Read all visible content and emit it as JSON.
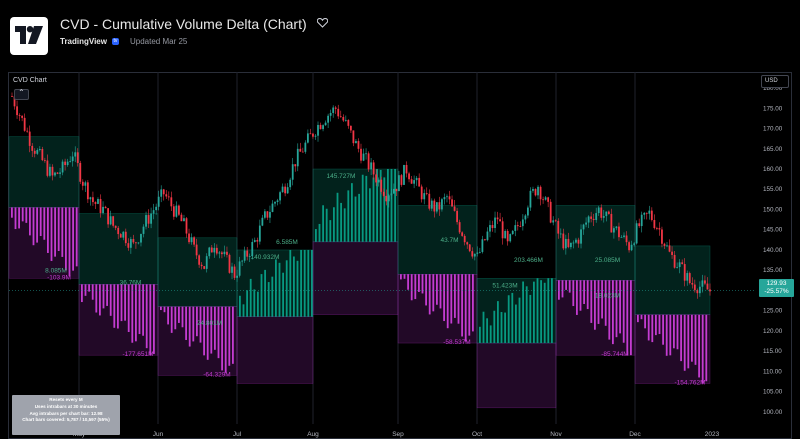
{
  "header": {
    "title": "CVD - Cumulative Volume Delta (Chart)",
    "author": "TradingView",
    "updated": "Updated Mar 25"
  },
  "chart": {
    "pane_title": "CVD Chart",
    "currency": "USD",
    "last_price": "129.93",
    "last_change": "-25.57%",
    "info_lines": [
      "Resets every M",
      "Uses intrabars at 30 minutes",
      "Avg intrabars per chart bar: 12.98",
      "Chart bars covered: 5,787 / 10,597 (55%)"
    ]
  },
  "chart_data": {
    "type": "candlestick",
    "title": "CVD Chart",
    "y_ticks": [
      100.0,
      105.0,
      110.0,
      115.0,
      120.0,
      125.0,
      130.0,
      135.0,
      140.0,
      145.0,
      150.0,
      155.0,
      160.0,
      165.0,
      170.0,
      175.0,
      180.0
    ],
    "ylim": [
      97,
      181
    ],
    "x_tick_labels": [
      "May",
      "Jun",
      "Jul",
      "Aug",
      "Sep",
      "Oct",
      "Nov",
      "Dec",
      "2023"
    ],
    "months": [
      {
        "cvd_label": "-103.9M",
        "box_top": 168.0,
        "box_bottom": 133.0,
        "cvd_sign": -1
      },
      {
        "cvd_label": "-177.651M",
        "box_top": 149.0,
        "box_bottom": 114.0,
        "cvd_sign": -1
      },
      {
        "cvd_label": "-64.329M",
        "box_top": 143.0,
        "box_bottom": 109.0,
        "cvd_sign": -1
      },
      {
        "cvd_label": "140.932M",
        "box_top": 140.0,
        "box_bottom": 107.0,
        "cvd_sign": 1
      },
      {
        "cvd_label": "145.727M",
        "box_top": 160.0,
        "box_bottom": 124.0,
        "cvd_sign": 1
      },
      {
        "cvd_label": "-58.537M",
        "box_top": 151.0,
        "box_bottom": 117.0,
        "cvd_sign": -1
      },
      {
        "cvd_label": "51.423M",
        "box_top": 133.0,
        "box_bottom": 101.0,
        "cvd_sign": 1
      },
      {
        "cvd_label": "-85.744M",
        "box_top": 151.0,
        "box_bottom": 114.0,
        "cvd_sign": -1
      },
      {
        "cvd_label": "-154.762M",
        "box_top": 141.0,
        "box_bottom": 107.0,
        "cvd_sign": -1
      }
    ],
    "extra_labels": [
      {
        "text": "36.76M",
        "month": 1,
        "price": 131.5,
        "sign": 1
      },
      {
        "text": "8.085M",
        "month": 0,
        "price": 134.4,
        "sign": 1
      },
      {
        "text": "24.801M",
        "month": 2,
        "price": 121.5,
        "sign": 1
      },
      {
        "text": "6.585M",
        "month": 3,
        "price": 141.5,
        "sign": 1
      },
      {
        "text": "43.7M",
        "month": 5,
        "price": 142.0,
        "sign": 1
      },
      {
        "text": "203.466M",
        "month": 6,
        "price": 137.0,
        "sign": 1
      },
      {
        "text": "25.085M",
        "month": 7,
        "price": 137.0,
        "sign": 1
      },
      {
        "text": "18.023M",
        "month": 7,
        "price": 128.2,
        "sign": 1
      }
    ],
    "close_path": [
      178,
      172,
      166,
      162,
      158,
      160,
      164,
      157,
      152,
      150,
      146,
      144,
      141,
      146,
      150,
      154,
      150,
      146,
      140,
      136,
      142,
      138,
      134,
      138,
      142,
      148,
      152,
      156,
      162,
      166,
      170,
      173,
      175,
      171,
      166,
      162,
      158,
      154,
      156,
      160,
      156,
      152,
      150,
      153,
      147,
      142,
      138,
      144,
      148,
      141,
      146,
      152,
      156,
      150,
      144,
      140,
      143,
      148,
      150,
      147,
      144,
      141,
      146,
      149,
      145,
      139,
      136,
      132,
      131,
      129.93
    ]
  }
}
